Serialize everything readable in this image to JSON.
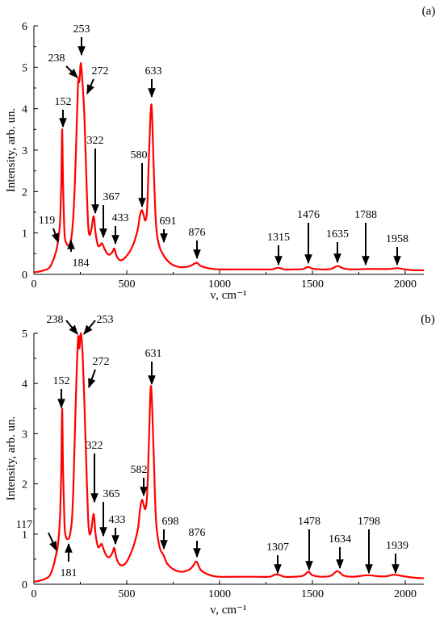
{
  "colors": {
    "curve": "#ff0000",
    "axis": "#000000",
    "arrow": "#000000"
  },
  "chart_data": [
    {
      "type": "line",
      "panel_label": "(a)",
      "xlabel": "ν, cm⁻¹",
      "ylabel": "Intensity, arb. un.",
      "xlim": [
        0,
        2100
      ],
      "ylim": [
        0,
        6
      ],
      "xticks": [
        0,
        500,
        1000,
        1500,
        2000
      ],
      "yticks": [
        0,
        1,
        2,
        3,
        4,
        5,
        6
      ],
      "series": [
        {
          "x": [
            0,
            40,
            80,
            100,
            119,
            130,
            140,
            147,
            152,
            157,
            165,
            175,
            184,
            195,
            205,
            215,
            225,
            238,
            245,
            253,
            262,
            272,
            282,
            292,
            300,
            310,
            322,
            332,
            345,
            357,
            367,
            380,
            395,
            410,
            425,
            433,
            445,
            460,
            480,
            500,
            520,
            540,
            560,
            570,
            580,
            590,
            600,
            610,
            620,
            633,
            645,
            655,
            665,
            680,
            691,
            710,
            740,
            780,
            820,
            850,
            876,
            900,
            950,
            1000,
            1100,
            1200,
            1280,
            1315,
            1350,
            1400,
            1450,
            1476,
            1500,
            1550,
            1600,
            1635,
            1670,
            1720,
            1788,
            1850,
            1920,
            1958,
            2000,
            2050,
            2100
          ],
          "y": [
            0.05,
            0.08,
            0.15,
            0.3,
            0.55,
            0.8,
            1.2,
            2.1,
            3.5,
            2.2,
            1.0,
            0.75,
            0.7,
            0.75,
            1.0,
            1.6,
            2.8,
            4.6,
            4.65,
            5.1,
            4.6,
            3.8,
            2.4,
            1.2,
            0.95,
            1.1,
            1.4,
            1.0,
            0.7,
            0.7,
            0.75,
            0.62,
            0.5,
            0.48,
            0.56,
            0.62,
            0.45,
            0.35,
            0.36,
            0.45,
            0.58,
            0.78,
            1.1,
            1.4,
            1.55,
            1.45,
            1.3,
            1.6,
            2.9,
            4.1,
            2.6,
            1.4,
            0.9,
            0.62,
            0.52,
            0.38,
            0.25,
            0.18,
            0.18,
            0.22,
            0.28,
            0.2,
            0.14,
            0.12,
            0.12,
            0.12,
            0.12,
            0.16,
            0.12,
            0.12,
            0.13,
            0.18,
            0.14,
            0.12,
            0.13,
            0.2,
            0.14,
            0.12,
            0.13,
            0.13,
            0.13,
            0.15,
            0.12,
            0.1,
            0.1
          ]
        }
      ],
      "peaks": [
        {
          "label": "119",
          "x": 119,
          "y": 0.55
        },
        {
          "label": "152",
          "x": 152,
          "y": 3.5
        },
        {
          "label": "184",
          "x": 184,
          "y": 0.7
        },
        {
          "label": "238",
          "x": 238,
          "y": 4.6
        },
        {
          "label": "253",
          "x": 253,
          "y": 5.1
        },
        {
          "label": "272",
          "x": 272,
          "y": 3.8
        },
        {
          "label": "322",
          "x": 322,
          "y": 1.4
        },
        {
          "label": "367",
          "x": 367,
          "y": 0.75
        },
        {
          "label": "433",
          "x": 433,
          "y": 0.62
        },
        {
          "label": "580",
          "x": 580,
          "y": 1.55
        },
        {
          "label": "633",
          "x": 633,
          "y": 4.1
        },
        {
          "label": "691",
          "x": 691,
          "y": 0.52
        },
        {
          "label": "876",
          "x": 876,
          "y": 0.28
        },
        {
          "label": "1315",
          "x": 1315,
          "y": 0.16
        },
        {
          "label": "1476",
          "x": 1476,
          "y": 0.18
        },
        {
          "label": "1635",
          "x": 1635,
          "y": 0.2
        },
        {
          "label": "1788",
          "x": 1788,
          "y": 0.13
        },
        {
          "label": "1958",
          "x": 1958,
          "y": 0.15
        }
      ]
    },
    {
      "type": "line",
      "panel_label": "(b)",
      "xlabel": "ν, cm⁻¹",
      "ylabel": "Intensity, arb. un.",
      "xlim": [
        0,
        2100
      ],
      "ylim": [
        0,
        5
      ],
      "xticks": [
        0,
        500,
        1000,
        1500,
        2000
      ],
      "yticks": [
        0,
        1,
        2,
        3,
        4,
        5
      ],
      "series": [
        {
          "x": [
            0,
            40,
            80,
            100,
            117,
            130,
            140,
            147,
            152,
            157,
            165,
            172,
            181,
            192,
            205,
            215,
            225,
            238,
            245,
            253,
            262,
            272,
            282,
            292,
            300,
            310,
            322,
            332,
            345,
            355,
            365,
            380,
            395,
            410,
            425,
            433,
            445,
            460,
            480,
            500,
            520,
            540,
            560,
            572,
            582,
            590,
            600,
            610,
            620,
            631,
            645,
            655,
            665,
            680,
            698,
            720,
            760,
            800,
            840,
            860,
            876,
            900,
            950,
            1000,
            1100,
            1200,
            1270,
            1307,
            1350,
            1400,
            1450,
            1478,
            1500,
            1550,
            1600,
            1634,
            1670,
            1720,
            1798,
            1850,
            1900,
            1939,
            1990,
            2050,
            2100
          ],
          "y": [
            0.05,
            0.08,
            0.15,
            0.3,
            0.55,
            0.8,
            1.3,
            2.2,
            3.5,
            2.3,
            1.2,
            0.95,
            0.9,
            0.95,
            1.3,
            2.2,
            3.6,
            4.9,
            4.7,
            5.0,
            4.6,
            3.6,
            2.4,
            1.3,
            1.0,
            1.1,
            1.4,
            1.0,
            0.75,
            0.76,
            0.8,
            0.65,
            0.55,
            0.55,
            0.65,
            0.72,
            0.52,
            0.4,
            0.38,
            0.45,
            0.6,
            0.8,
            1.1,
            1.5,
            1.68,
            1.6,
            1.5,
            1.8,
            2.9,
            3.95,
            2.6,
            1.45,
            1.0,
            0.7,
            0.58,
            0.4,
            0.28,
            0.25,
            0.3,
            0.38,
            0.45,
            0.28,
            0.18,
            0.15,
            0.15,
            0.15,
            0.15,
            0.2,
            0.15,
            0.15,
            0.17,
            0.25,
            0.18,
            0.15,
            0.17,
            0.26,
            0.17,
            0.15,
            0.18,
            0.16,
            0.16,
            0.19,
            0.16,
            0.13,
            0.12
          ]
        }
      ],
      "peaks": [
        {
          "label": "117",
          "x": 117,
          "y": 0.55
        },
        {
          "label": "152",
          "x": 152,
          "y": 3.5
        },
        {
          "label": "181",
          "x": 181,
          "y": 0.9
        },
        {
          "label": "238",
          "x": 238,
          "y": 4.9
        },
        {
          "label": "253",
          "x": 253,
          "y": 5.0
        },
        {
          "label": "272",
          "x": 272,
          "y": 3.6
        },
        {
          "label": "322",
          "x": 322,
          "y": 1.4
        },
        {
          "label": "365",
          "x": 365,
          "y": 0.8
        },
        {
          "label": "433",
          "x": 433,
          "y": 0.72
        },
        {
          "label": "582",
          "x": 582,
          "y": 1.68
        },
        {
          "label": "631",
          "x": 631,
          "y": 3.95
        },
        {
          "label": "698",
          "x": 698,
          "y": 0.58
        },
        {
          "label": "876",
          "x": 876,
          "y": 0.45
        },
        {
          "label": "1307",
          "x": 1307,
          "y": 0.2
        },
        {
          "label": "1478",
          "x": 1478,
          "y": 0.25
        },
        {
          "label": "1634",
          "x": 1634,
          "y": 0.26
        },
        {
          "label": "1798",
          "x": 1798,
          "y": 0.18
        },
        {
          "label": "1939",
          "x": 1939,
          "y": 0.19
        }
      ]
    }
  ]
}
